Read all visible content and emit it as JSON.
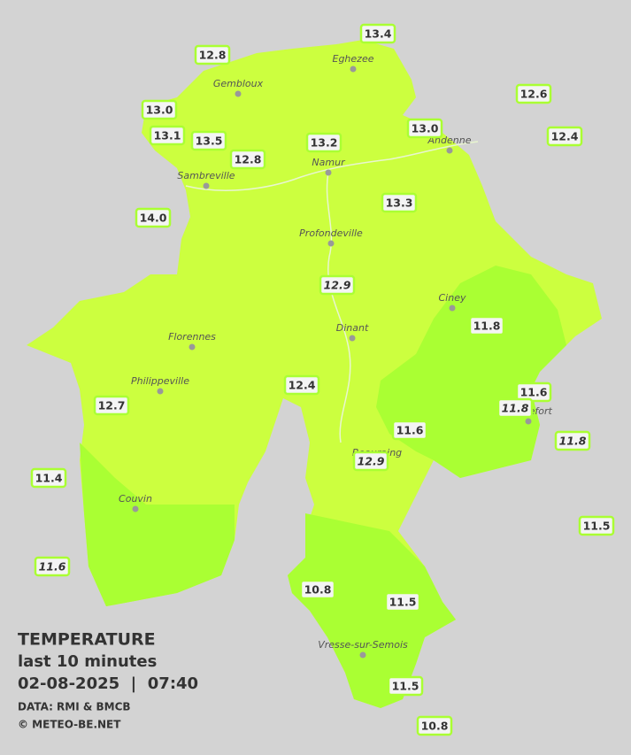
{
  "legend": {
    "title": "TEMPERATURE",
    "period": "last 10 minutes",
    "timestamp": "02-08-2025  |  07:40",
    "source": "DATA: RMI & BMCB",
    "copyright": "© METEO-BE.NET"
  },
  "cities": [
    "Eghezee",
    "Gembloux",
    "Andenne",
    "Namur",
    "Sambreville",
    "Profondeville",
    "Ciney",
    "Dinant",
    "Florennes",
    "Philippeville",
    "Rochefort",
    "Beauraing",
    "Couvin",
    "Vresse-sur-Semois"
  ],
  "stations": [
    {
      "label": "13.4"
    },
    {
      "label": "12.8"
    },
    {
      "label": "12.6"
    },
    {
      "label": "13.0"
    },
    {
      "label": "13.0"
    },
    {
      "label": "12.4"
    },
    {
      "label": "13.1"
    },
    {
      "label": "13.5"
    },
    {
      "label": "13.2"
    },
    {
      "label": "12.8"
    },
    {
      "label": "14.0"
    },
    {
      "label": "13.3"
    },
    {
      "label": "12.9",
      "italic": true
    },
    {
      "label": "11.8"
    },
    {
      "label": "12.4"
    },
    {
      "label": "11.6"
    },
    {
      "label": "12.7"
    },
    {
      "label": "11.8",
      "italic": true
    },
    {
      "label": "11.6"
    },
    {
      "label": "11.8",
      "italic": true
    },
    {
      "label": "12.9",
      "italic": true
    },
    {
      "label": "11.4"
    },
    {
      "label": "11.5"
    },
    {
      "label": "11.6",
      "italic": true
    },
    {
      "label": "10.8"
    },
    {
      "label": "11.5"
    },
    {
      "label": "11.5"
    },
    {
      "label": "10.8"
    }
  ]
}
